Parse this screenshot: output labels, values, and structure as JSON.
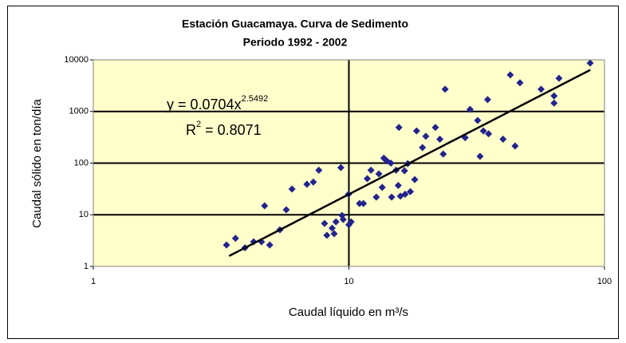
{
  "chart_data": {
    "type": "scatter",
    "title": "Estación Guacamaya. Curva de Sedimento",
    "subtitle": "Periodo 1992 - 2002",
    "x_label": "Caudal líquido en m³/s",
    "y_label": "Caudal sólido en ton/día",
    "x_log": true,
    "y_log": true,
    "grid": true,
    "xlim": [
      1,
      100
    ],
    "xticks": [
      1,
      10,
      100
    ],
    "ylim": [
      1,
      10000
    ],
    "yticks": [
      1,
      10,
      100,
      1000,
      10000
    ],
    "series": [
      {
        "color": "#23238e",
        "x": [
          3.32,
          3.6,
          3.92,
          4.24,
          4.55,
          4.68,
          4.9,
          5.37,
          5.69,
          5.99,
          6.85,
          7.26,
          7.63,
          8.03,
          8.2,
          8.6,
          8.76,
          8.9,
          9.3,
          9.4,
          9.5,
          9.97,
          10.0,
          10.2,
          11.0,
          11.4,
          11.8,
          12.2,
          12.8,
          13.1,
          13.5,
          13.7,
          14.1,
          14.6,
          14.7,
          15.3,
          15.6,
          15.7,
          15.9,
          16.5,
          16.6,
          17.0,
          17.4,
          18.1,
          18.4,
          19.4,
          20.0,
          21.8,
          22.7,
          23.4,
          23.8,
          28.5,
          29.8,
          31.9,
          32.6,
          33.6,
          34.9,
          35.2,
          40.1,
          42.8,
          44.7,
          46.7,
          56.5,
          63.5,
          63.5,
          66.4,
          87.9
        ],
        "values": [
          2.6,
          3.5,
          2.3,
          3.0,
          3.0,
          14.9,
          2.6,
          5.1,
          12.5,
          31.5,
          39,
          43,
          73,
          6.8,
          4.0,
          5.5,
          4.3,
          7.3,
          82,
          9.7,
          8.1,
          25,
          6.4,
          7.3,
          16.5,
          16.5,
          50,
          73,
          22,
          62,
          34,
          125,
          110,
          100,
          22,
          73,
          37,
          490,
          23,
          71,
          25,
          98,
          28,
          48,
          420,
          200,
          330,
          490,
          290,
          150,
          2700,
          310,
          1100,
          670,
          135,
          420,
          1700,
          370,
          290,
          5100,
          215,
          3600,
          2700,
          1450,
          2000,
          4400,
          8670
        ]
      }
    ],
    "trendline": {
      "type": "power",
      "coefficient": 0.0704,
      "exponent": 2.5492,
      "x_range": [
        3.4,
        88
      ],
      "color": "#000000",
      "equation": {
        "base": "y = 0.0704x",
        "superscript": "2.5492"
      },
      "r_squared": {
        "base": "R",
        "superscript": "2",
        "rest": "= 0.8071"
      }
    }
  }
}
